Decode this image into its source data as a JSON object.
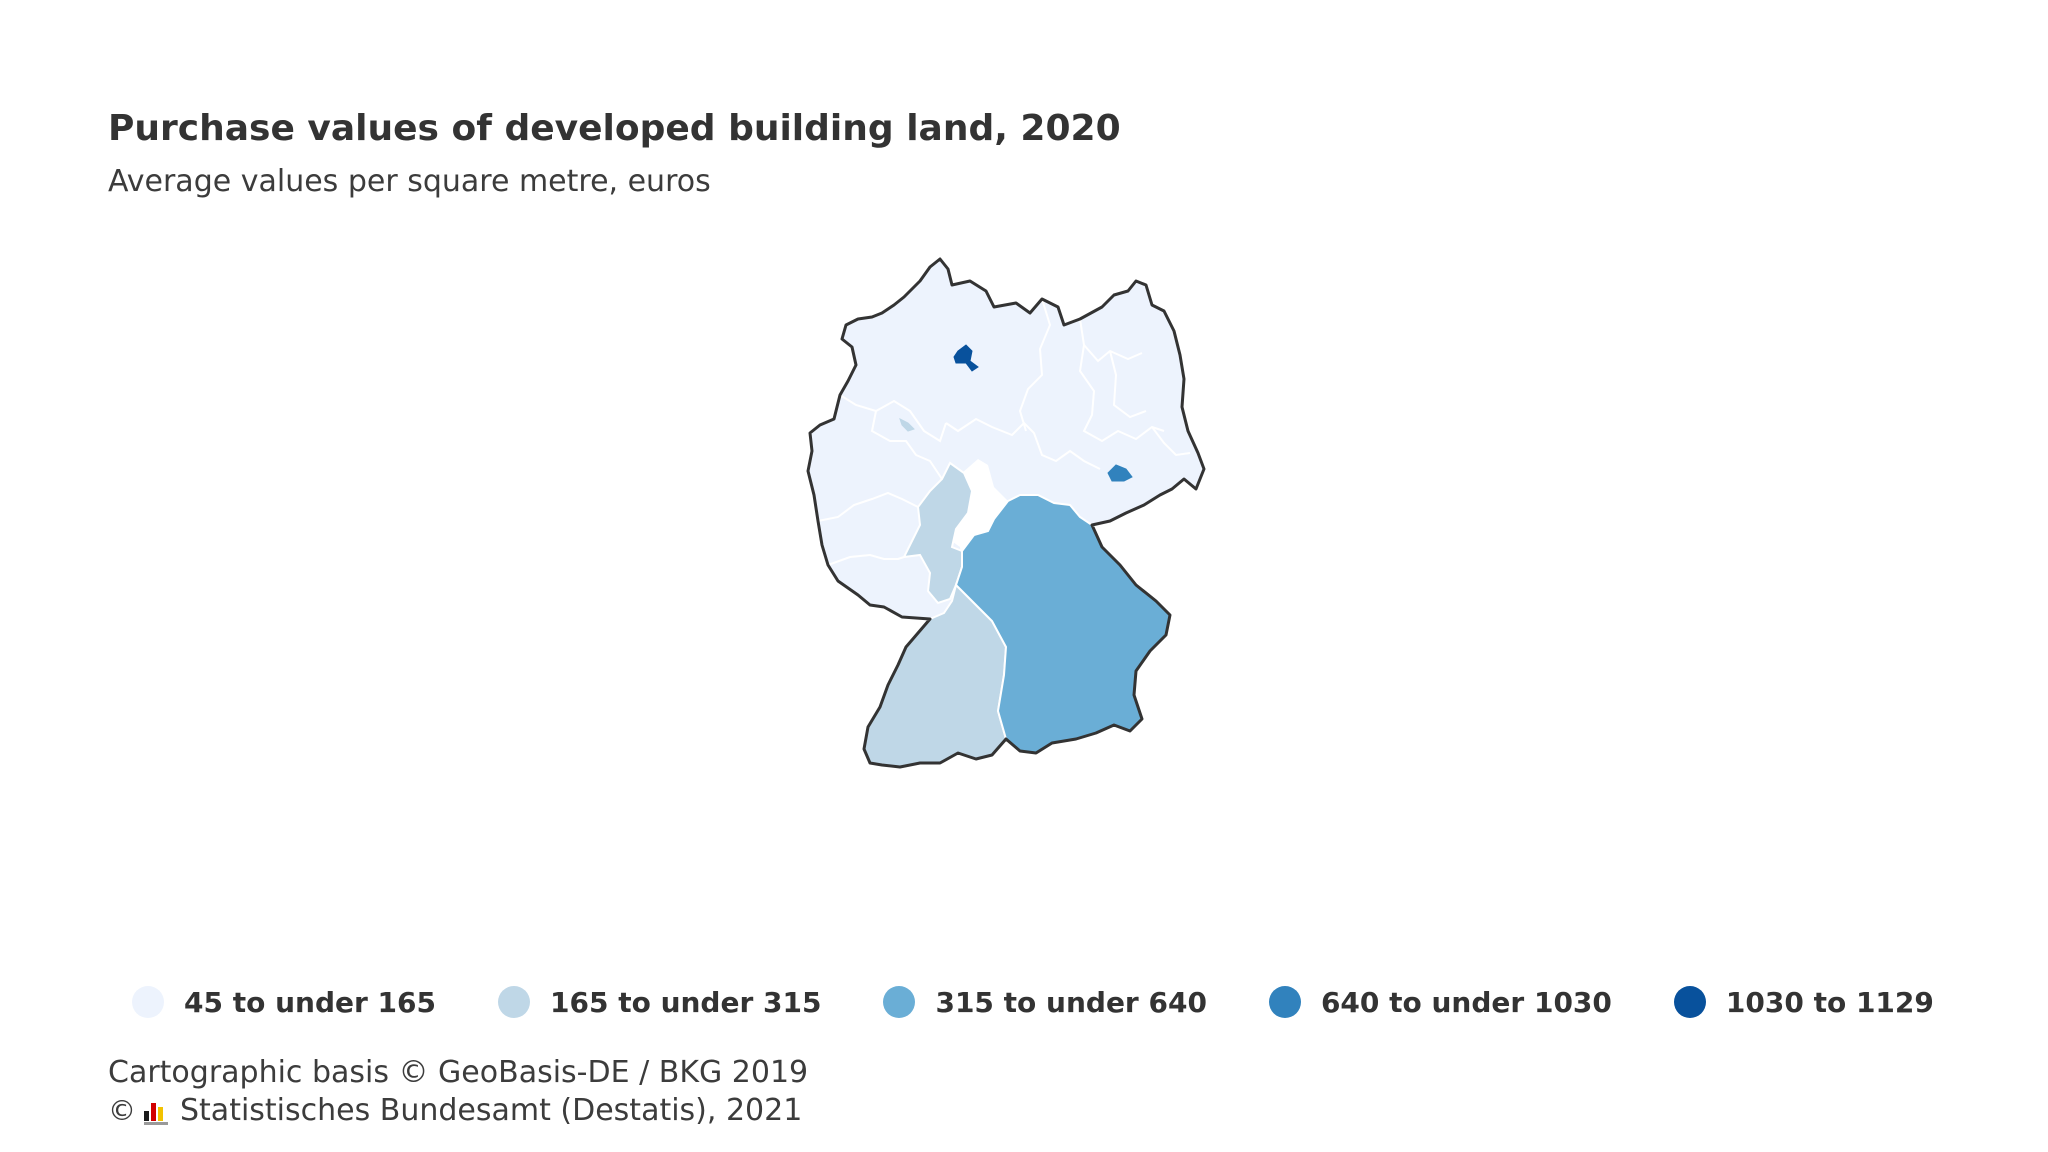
{
  "title": "Purchase values of developed building land, 2020",
  "subtitle": "Average values per square metre, euros",
  "legend": [
    {
      "label": "45 to under 165",
      "color": "#edf3fd"
    },
    {
      "label": "165 to under 315",
      "color": "#bfd7e7"
    },
    {
      "label": "315 to under 640",
      "color": "#6aaed6"
    },
    {
      "label": "640 to under 1030",
      "color": "#3182bd"
    },
    {
      "label": "1030 to 1129",
      "color": "#08519c"
    }
  ],
  "regions": {
    "north": {
      "class": 0
    },
    "hesse": {
      "class": 1
    },
    "baden_wuerttemberg": {
      "class": 1
    },
    "bavaria": {
      "class": 2
    },
    "berlin": {
      "class": 3
    },
    "hamburg": {
      "class": 4
    },
    "bremen": {
      "class": 1
    }
  },
  "source": {
    "line1": "Cartographic basis © GeoBasis-DE / BKG 2019",
    "copyright_symbol": "©",
    "line2": "Statistisches Bundesamt (Destatis), 2021",
    "logo_colors": [
      "#1a1a1a",
      "#d10000",
      "#f2c200"
    ]
  }
}
